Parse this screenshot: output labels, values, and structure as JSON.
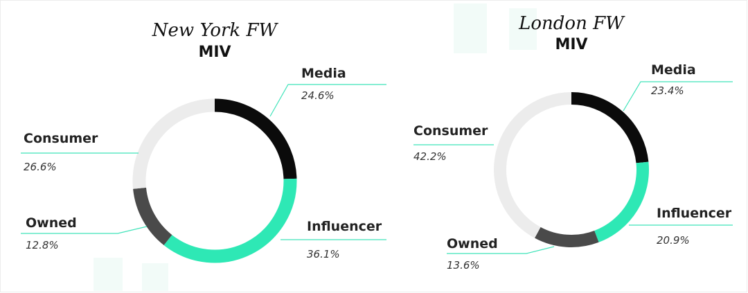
{
  "chart_data": [
    {
      "type": "pie",
      "title": "New York FW",
      "subtitle": "MIV",
      "categories": [
        "Media",
        "Influencer",
        "Owned",
        "Consumer"
      ],
      "values": [
        24.6,
        36.1,
        12.8,
        26.6
      ],
      "value_labels": [
        "24.6%",
        "36.1%",
        "12.8%",
        "26.6%"
      ],
      "colors": [
        "#0b0b0b",
        "#2ee8b5",
        "#4a4a4a",
        "#ececec"
      ],
      "style": "donut",
      "start": "top",
      "direction": "clockwise",
      "leader_color": "#3fe3b9"
    },
    {
      "type": "pie",
      "title": "London FW",
      "subtitle": "MIV",
      "categories": [
        "Media",
        "Influencer",
        "Owned",
        "Consumer"
      ],
      "values": [
        23.4,
        20.9,
        13.6,
        42.2
      ],
      "value_labels": [
        "23.4%",
        "20.9%",
        "13.6%",
        "42.2%"
      ],
      "colors": [
        "#0b0b0b",
        "#2ee8b5",
        "#4a4a4a",
        "#ececec"
      ],
      "style": "donut",
      "start": "top",
      "direction": "clockwise",
      "leader_color": "#3fe3b9"
    }
  ]
}
